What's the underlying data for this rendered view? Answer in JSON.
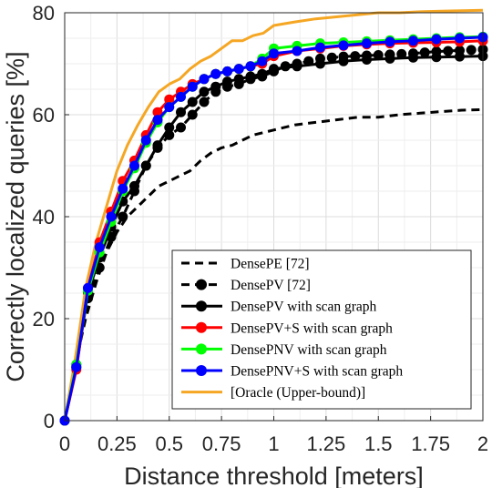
{
  "chart_data": {
    "type": "line",
    "xlabel": "Distance threshold [meters]",
    "ylabel": "Correctly localized queries [%]",
    "xlim": [
      0,
      2
    ],
    "ylim": [
      0,
      80
    ],
    "xticks": [
      0,
      0.25,
      0.5,
      0.75,
      1,
      1.25,
      1.5,
      1.75,
      2
    ],
    "xtick_labels": [
      "0",
      "0.25",
      "0.5",
      "0.75",
      "1",
      "1.25",
      "1.5",
      "1.75",
      "2"
    ],
    "yticks": [
      0,
      20,
      40,
      60,
      80
    ],
    "ytick_labels": [
      "0",
      "20",
      "40",
      "60",
      "80"
    ],
    "grid": true,
    "legend_position": "bottom-right",
    "series": [
      {
        "name": "DensePE [72]",
        "color": "#000000",
        "style": "dashed",
        "marker": "none",
        "x": [
          0,
          0.05,
          0.1,
          0.15,
          0.2,
          0.25,
          0.3,
          0.35,
          0.4,
          0.45,
          0.5,
          0.55,
          0.6,
          0.65,
          0.7,
          0.75,
          0.8,
          0.85,
          0.9,
          0.95,
          1.0,
          1.1,
          1.2,
          1.3,
          1.4,
          1.5,
          1.6,
          1.7,
          1.8,
          1.9,
          2.0
        ],
        "y": [
          0,
          11,
          20,
          27,
          33,
          37,
          40,
          42,
          44,
          46,
          47,
          48,
          49,
          51,
          52.5,
          53.5,
          54,
          55,
          56,
          56.5,
          57,
          58,
          58.5,
          59,
          59.5,
          59.5,
          60,
          60.3,
          60.6,
          60.9,
          61
        ]
      },
      {
        "name": "DensePV [72]",
        "color": "#000000",
        "style": "dashed",
        "marker": "circle",
        "x": [
          0,
          0.0556,
          0.1111,
          0.1667,
          0.2222,
          0.2778,
          0.3333,
          0.3889,
          0.4444,
          0.5,
          0.5556,
          0.6111,
          0.6667,
          0.7222,
          0.7778,
          0.8333,
          0.8889,
          0.9444,
          1.0,
          1.0556,
          1.1111,
          1.1667,
          1.2222,
          1.2778,
          1.3333,
          1.3889,
          1.4444,
          1.5,
          1.5556,
          1.6111,
          1.6667,
          1.7222,
          1.7778,
          1.8333,
          1.8889,
          1.9444,
          2.0
        ],
        "y": [
          0,
          11,
          24,
          30,
          36,
          40,
          45,
          50,
          53.5,
          56,
          57.5,
          60,
          62.5,
          64.5,
          65.5,
          66,
          67,
          67.5,
          68.5,
          69.5,
          70,
          70.5,
          71,
          71.2,
          71.4,
          71.5,
          71.6,
          71.7,
          71.8,
          71.9,
          72,
          72.2,
          72.4,
          72.5,
          72.6,
          72.7,
          72.8
        ]
      },
      {
        "name": "DensePV with scan graph",
        "color": "#000000",
        "style": "solid",
        "marker": "circle",
        "x": [
          0,
          0.0556,
          0.1111,
          0.1667,
          0.2222,
          0.2778,
          0.3333,
          0.3889,
          0.4444,
          0.5,
          0.5556,
          0.6111,
          0.6667,
          0.7222,
          0.7778,
          0.8333,
          0.8889,
          0.9444,
          1.0,
          1.1111,
          1.2222,
          1.3333,
          1.4444,
          1.5556,
          1.6667,
          1.7778,
          1.8889,
          2.0
        ],
        "y": [
          0,
          10.5,
          25,
          32,
          38,
          43,
          46,
          50,
          54,
          57.5,
          60.5,
          62.5,
          64.5,
          65.5,
          66.5,
          67,
          67.5,
          68,
          69,
          69.5,
          70,
          70.5,
          70.8,
          71,
          71.2,
          71.3,
          71.4,
          71.5
        ]
      },
      {
        "name": "DensePV+S with scan graph",
        "color": "#ff0000",
        "style": "solid",
        "marker": "circle",
        "x": [
          0,
          0.0556,
          0.1111,
          0.1667,
          0.2222,
          0.2778,
          0.3333,
          0.3889,
          0.4444,
          0.5,
          0.5556,
          0.6111,
          0.6667,
          0.7222,
          0.7778,
          0.8333,
          0.8889,
          0.9444,
          1.0,
          1.1111,
          1.2222,
          1.3333,
          1.4444,
          1.5556,
          1.6667,
          1.7778,
          1.8889,
          2.0
        ],
        "y": [
          0,
          10,
          26,
          35,
          41,
          47,
          51,
          56,
          60.5,
          63,
          64.5,
          66,
          67,
          68,
          68.5,
          69,
          69.5,
          70,
          71.5,
          72.5,
          73,
          73.5,
          73.8,
          74,
          74.1,
          74.2,
          74.3,
          74.5
        ]
      },
      {
        "name": "DensePNV with scan graph",
        "color": "#00ff00",
        "style": "solid",
        "marker": "circle",
        "x": [
          0,
          0.0556,
          0.1111,
          0.1667,
          0.2222,
          0.2778,
          0.3333,
          0.3889,
          0.4444,
          0.5,
          0.5556,
          0.6111,
          0.6667,
          0.7222,
          0.7778,
          0.8333,
          0.8889,
          0.9444,
          1.0,
          1.1111,
          1.2222,
          1.3333,
          1.4444,
          1.5556,
          1.6667,
          1.7778,
          1.8889,
          2.0
        ],
        "y": [
          0,
          11,
          25.5,
          33,
          39,
          45,
          49.5,
          54.5,
          58.5,
          61.5,
          63.5,
          65.5,
          67,
          68,
          68.5,
          69,
          69.5,
          71,
          73,
          73.5,
          74,
          74.2,
          74.4,
          74.6,
          74.8,
          75,
          75.2,
          75.3
        ]
      },
      {
        "name": "DensePNV+S with scan graph",
        "color": "#0000ff",
        "style": "solid",
        "marker": "circle",
        "x": [
          0,
          0.0556,
          0.1111,
          0.1667,
          0.2222,
          0.2778,
          0.3333,
          0.3889,
          0.4444,
          0.5,
          0.5556,
          0.6111,
          0.6667,
          0.7222,
          0.7778,
          0.8333,
          0.8889,
          0.9444,
          1.0,
          1.1111,
          1.2222,
          1.3333,
          1.4444,
          1.5556,
          1.6667,
          1.7778,
          1.8889,
          2.0
        ],
        "y": [
          0,
          10.5,
          26,
          34,
          40,
          45.5,
          50,
          55,
          59,
          61.5,
          63.5,
          65.5,
          67,
          68,
          68.5,
          69,
          69.5,
          70.5,
          72,
          72.5,
          73.2,
          73.6,
          74,
          74.3,
          74.5,
          74.8,
          75,
          75.2
        ]
      },
      {
        "name": "[Oracle (Upper-bound)]",
        "color": "#f5a623",
        "style": "solid",
        "marker": "none",
        "x": [
          0,
          0.05,
          0.1,
          0.15,
          0.2,
          0.25,
          0.3,
          0.35,
          0.4,
          0.45,
          0.5,
          0.55,
          0.6,
          0.65,
          0.7,
          0.75,
          0.8,
          0.85,
          0.9,
          0.95,
          1.0,
          1.1,
          1.2,
          1.3,
          1.4,
          1.5,
          1.6,
          1.7,
          1.8,
          1.9,
          2.0
        ],
        "y": [
          0,
          12,
          26,
          35,
          42,
          49,
          54,
          58,
          61.5,
          64.5,
          66,
          67,
          69,
          70.5,
          71.5,
          73,
          74.5,
          74.5,
          75.5,
          76,
          77.5,
          78.2,
          78.8,
          79.2,
          79.6,
          80,
          80,
          80.2,
          80.3,
          80.4,
          80.5
        ]
      }
    ]
  }
}
